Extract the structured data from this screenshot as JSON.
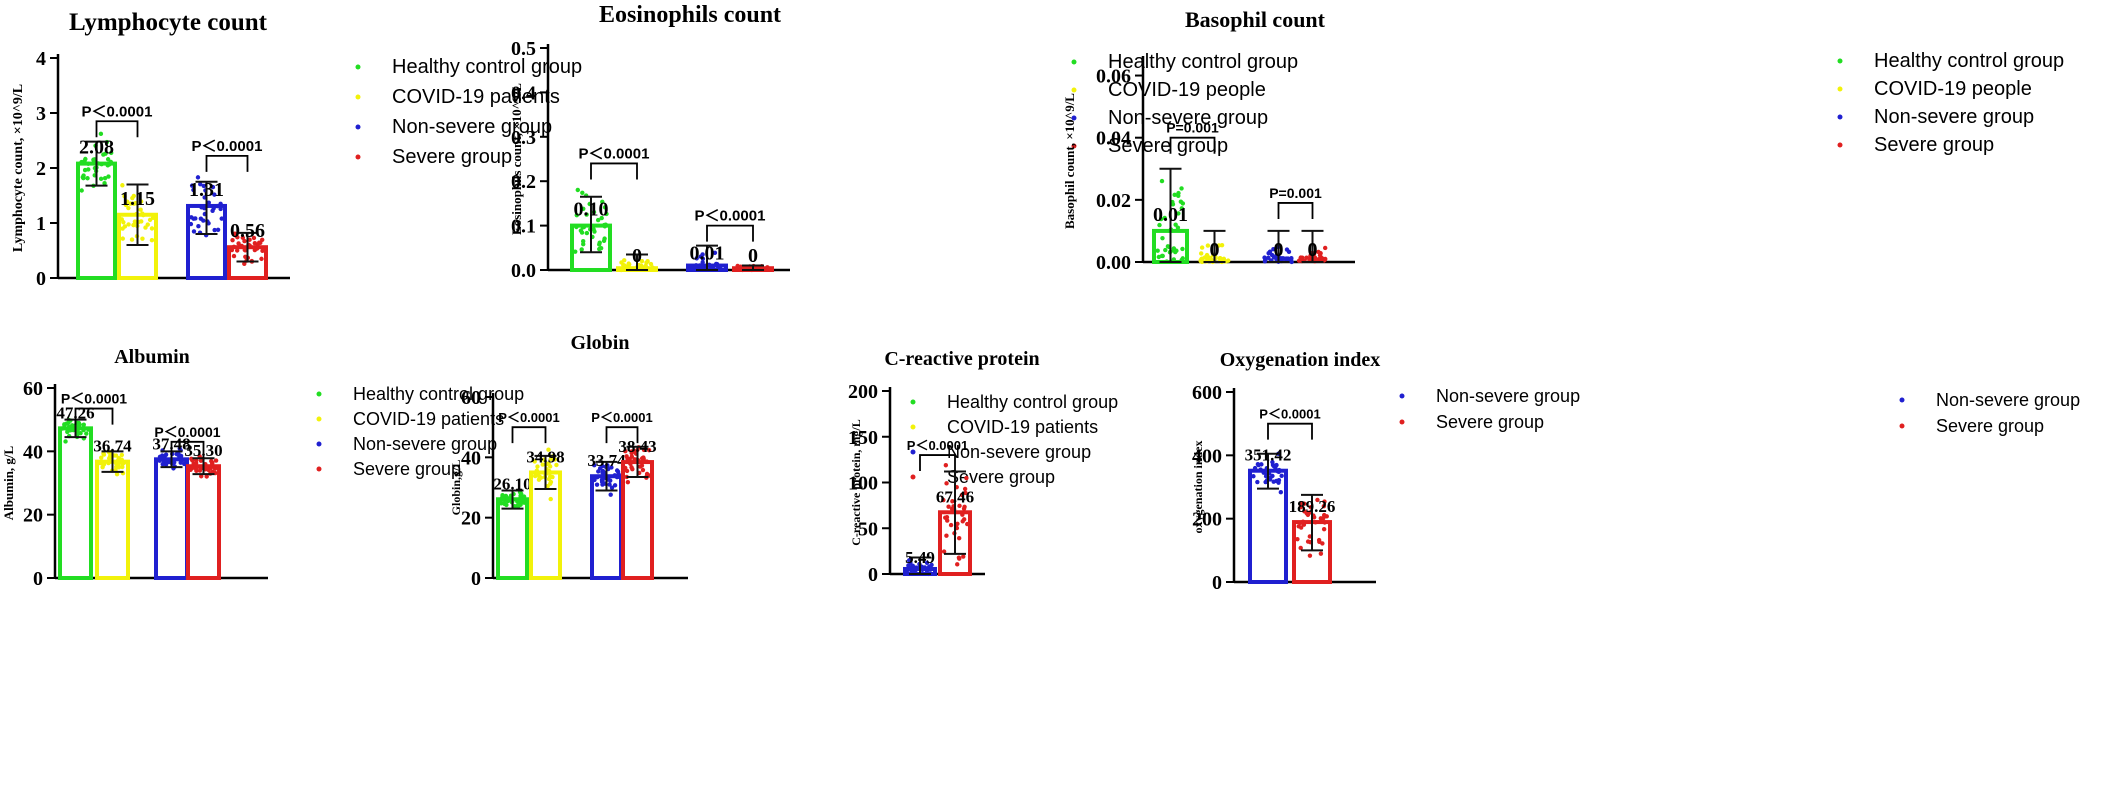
{
  "chart_data": [
    {
      "type": "bar",
      "title": "Lymphocyte count",
      "ylabel": "Lymphocyte count, ×10^9/L",
      "ylim": [
        0,
        4
      ],
      "yticks": [
        "0",
        "1",
        "2",
        "3",
        "4"
      ],
      "bars": [
        {
          "group": "Healthy control group",
          "color": "#22dd22",
          "value": 2.08,
          "label": "2.08",
          "sd": [
            1.68,
            2.48
          ]
        },
        {
          "group": "COVID-19 patients",
          "color": "#f2f20a",
          "value": 1.15,
          "label": "1.15",
          "sd": [
            0.6,
            1.7
          ]
        },
        {
          "group": "Non-severe group",
          "color": "#2020d0",
          "value": 1.31,
          "label": "1.31",
          "sd": [
            0.8,
            1.75
          ]
        },
        {
          "group": "Severe group",
          "color": "#e02020",
          "value": 0.56,
          "label": "0.56",
          "sd": [
            0.3,
            0.82
          ]
        }
      ],
      "comparisons": [
        {
          "pair": [
            0,
            1
          ],
          "label": "P＜0.0001",
          "level": 2.85
        },
        {
          "pair": [
            2,
            3
          ],
          "label": "P＜0.0001",
          "level": 2.22
        }
      ],
      "legend": [
        "Healthy control group",
        "COVID-19 patients",
        "Non-severe group",
        "Severe group"
      ],
      "legend_position": "right"
    },
    {
      "type": "bar",
      "title": "Eosinophils count",
      "ylabel": "Eosinophils count, ×10^9/L",
      "ylim": [
        0,
        0.5
      ],
      "yticks": [
        "0.0",
        "0.1",
        "0.2",
        "0.3",
        "0.4",
        "0.5"
      ],
      "bars": [
        {
          "group": "Healthy control group",
          "color": "#22dd22",
          "value": 0.1,
          "label": "0.10",
          "sd": [
            0.04,
            0.165
          ]
        },
        {
          "group": "COVID-19 people",
          "color": "#f2f20a",
          "value": 0.004,
          "label": "0",
          "sd": [
            0.0,
            0.035
          ]
        },
        {
          "group": "Non-severe group",
          "color": "#2020d0",
          "value": 0.01,
          "label": "0.01",
          "sd": [
            0.0,
            0.055
          ]
        },
        {
          "group": "Severe group",
          "color": "#e02020",
          "value": 0.004,
          "label": "0",
          "sd": [
            0.0,
            0.01
          ]
        }
      ],
      "comparisons": [
        {
          "pair": [
            0,
            1
          ],
          "label": "P＜0.0001",
          "level": 0.24
        },
        {
          "pair": [
            2,
            3
          ],
          "label": "P＜0.0001",
          "level": 0.1
        }
      ],
      "legend": [
        "Healthy control group",
        "COVID-19 people",
        "Non-severe group",
        "Severe group"
      ],
      "legend_position": "right"
    },
    {
      "type": "bar",
      "title": "Basophil count",
      "ylabel": "Basophil count, ×10^9/L",
      "ylim": [
        0,
        0.065
      ],
      "yticks": [
        "0.00",
        "0.02",
        "0.04",
        "0.06"
      ],
      "bars": [
        {
          "group": "Healthy control group",
          "color": "#22dd22",
          "value": 0.01,
          "label": "0.01",
          "sd": [
            0.0,
            0.03
          ]
        },
        {
          "group": "COVID-19 people",
          "color": "#f2f20a",
          "value": 0.0,
          "label": "0",
          "sd": [
            0.0,
            0.01
          ]
        },
        {
          "group": "Non-severe group",
          "color": "#2020d0",
          "value": 0.0,
          "label": "0",
          "sd": [
            0.0,
            0.01
          ]
        },
        {
          "group": "Severe group",
          "color": "#e02020",
          "value": 0.0,
          "label": "0",
          "sd": [
            0.0,
            0.01
          ]
        }
      ],
      "comparisons": [
        {
          "pair": [
            0,
            1
          ],
          "label": "P=0.001",
          "level": 0.04
        },
        {
          "pair": [
            2,
            3
          ],
          "label": "P=0.001",
          "level": 0.019
        }
      ],
      "legend": [
        "Healthy control group",
        "COVID-19 people",
        "Non-severe group",
        "Severe group"
      ],
      "legend_position": "right"
    },
    {
      "type": "bar",
      "title": "Albumin",
      "ylabel": "Albumin, g/L",
      "ylim": [
        0,
        60
      ],
      "yticks": [
        "0",
        "20",
        "40",
        "60"
      ],
      "bars": [
        {
          "group": "Healthy control group",
          "color": "#22dd22",
          "value": 47.26,
          "label": "47.26",
          "sd": [
            44.5,
            50.0
          ]
        },
        {
          "group": "COVID-19 patients",
          "color": "#f2f20a",
          "value": 36.74,
          "label": "36.74",
          "sd": [
            33.5,
            40.0
          ]
        },
        {
          "group": "Non-severe group",
          "color": "#2020d0",
          "value": 37.48,
          "label": "37.48",
          "sd": [
            35.0,
            40.0
          ]
        },
        {
          "group": "Severe group",
          "color": "#e02020",
          "value": 35.3,
          "label": "35.30",
          "sd": [
            32.8,
            37.8
          ]
        }
      ],
      "comparisons": [
        {
          "pair": [
            0,
            1
          ],
          "label": "P＜0.0001",
          "level": 53.5
        },
        {
          "pair": [
            2,
            3
          ],
          "label": "P＜0.0001",
          "level": 43.0
        }
      ],
      "legend": [
        "Healthy control group",
        "COVID-19 patients",
        "Non-severe group",
        "Severe group"
      ],
      "legend_position": "right"
    },
    {
      "type": "bar",
      "title": "Globin",
      "ylabel": "Globin,g/L",
      "ylim": [
        0,
        60
      ],
      "yticks": [
        "0",
        "20",
        "40",
        "60"
      ],
      "bars": [
        {
          "group": "Healthy control group",
          "color": "#22dd22",
          "value": 26.1,
          "label": "26.10",
          "sd": [
            23.0,
            29.0
          ]
        },
        {
          "group": "COVID-19 patients",
          "color": "#f2f20a",
          "value": 34.98,
          "label": "34.98",
          "sd": [
            29.5,
            40.5
          ]
        },
        {
          "group": "Non-severe group",
          "color": "#2020d0",
          "value": 33.74,
          "label": "33.74",
          "sd": [
            29.0,
            38.5
          ]
        },
        {
          "group": "Severe group",
          "color": "#e02020",
          "value": 38.43,
          "label": "38.43",
          "sd": [
            33.5,
            43.5
          ]
        }
      ],
      "comparisons": [
        {
          "pair": [
            0,
            1
          ],
          "label": "P＜0.0001",
          "level": 50.0
        },
        {
          "pair": [
            2,
            3
          ],
          "label": "P＜0.0001",
          "level": 50.0
        }
      ],
      "legend": [
        "Healthy control group",
        "COVID-19 patients",
        "Non-severe group",
        "Severe group"
      ],
      "legend_position": "right"
    },
    {
      "type": "bar",
      "title": "C-reactive protein",
      "ylabel": "C-reactive protein, mg/L",
      "ylim": [
        0,
        200
      ],
      "yticks": [
        "0",
        "50",
        "100",
        "150",
        "200"
      ],
      "bars": [
        {
          "group": "Non-severe group",
          "color": "#2020d0",
          "value": 5.49,
          "label": "5.49",
          "sd": [
            0.0,
            18.0
          ]
        },
        {
          "group": "Severe group",
          "color": "#e02020",
          "value": 67.46,
          "label": "67.46",
          "sd": [
            22.0,
            112.0
          ]
        }
      ],
      "comparisons": [
        {
          "pair": [
            0,
            1
          ],
          "label": "P＜0.0001",
          "level": 130.0
        }
      ],
      "legend": [
        "Non-severe group",
        "Severe group"
      ],
      "legend_position": "right"
    },
    {
      "type": "bar",
      "title": "Oxygenation index",
      "ylabel": "oxygenation index",
      "ylim": [
        0,
        600
      ],
      "yticks": [
        "0",
        "200",
        "400",
        "600"
      ],
      "bars": [
        {
          "group": "Non-severe group",
          "color": "#2020d0",
          "value": 351.42,
          "label": "351.42",
          "sd": [
            295.0,
            405.0
          ]
        },
        {
          "group": "Severe group",
          "color": "#e02020",
          "value": 189.26,
          "label": "189.26",
          "sd": [
            100.0,
            275.0
          ]
        }
      ],
      "comparisons": [
        {
          "pair": [
            0,
            1
          ],
          "label": "P＜0.0001",
          "level": 500.0
        }
      ],
      "legend": [
        "Non-severe group",
        "Severe group"
      ],
      "legend_position": "right"
    }
  ]
}
